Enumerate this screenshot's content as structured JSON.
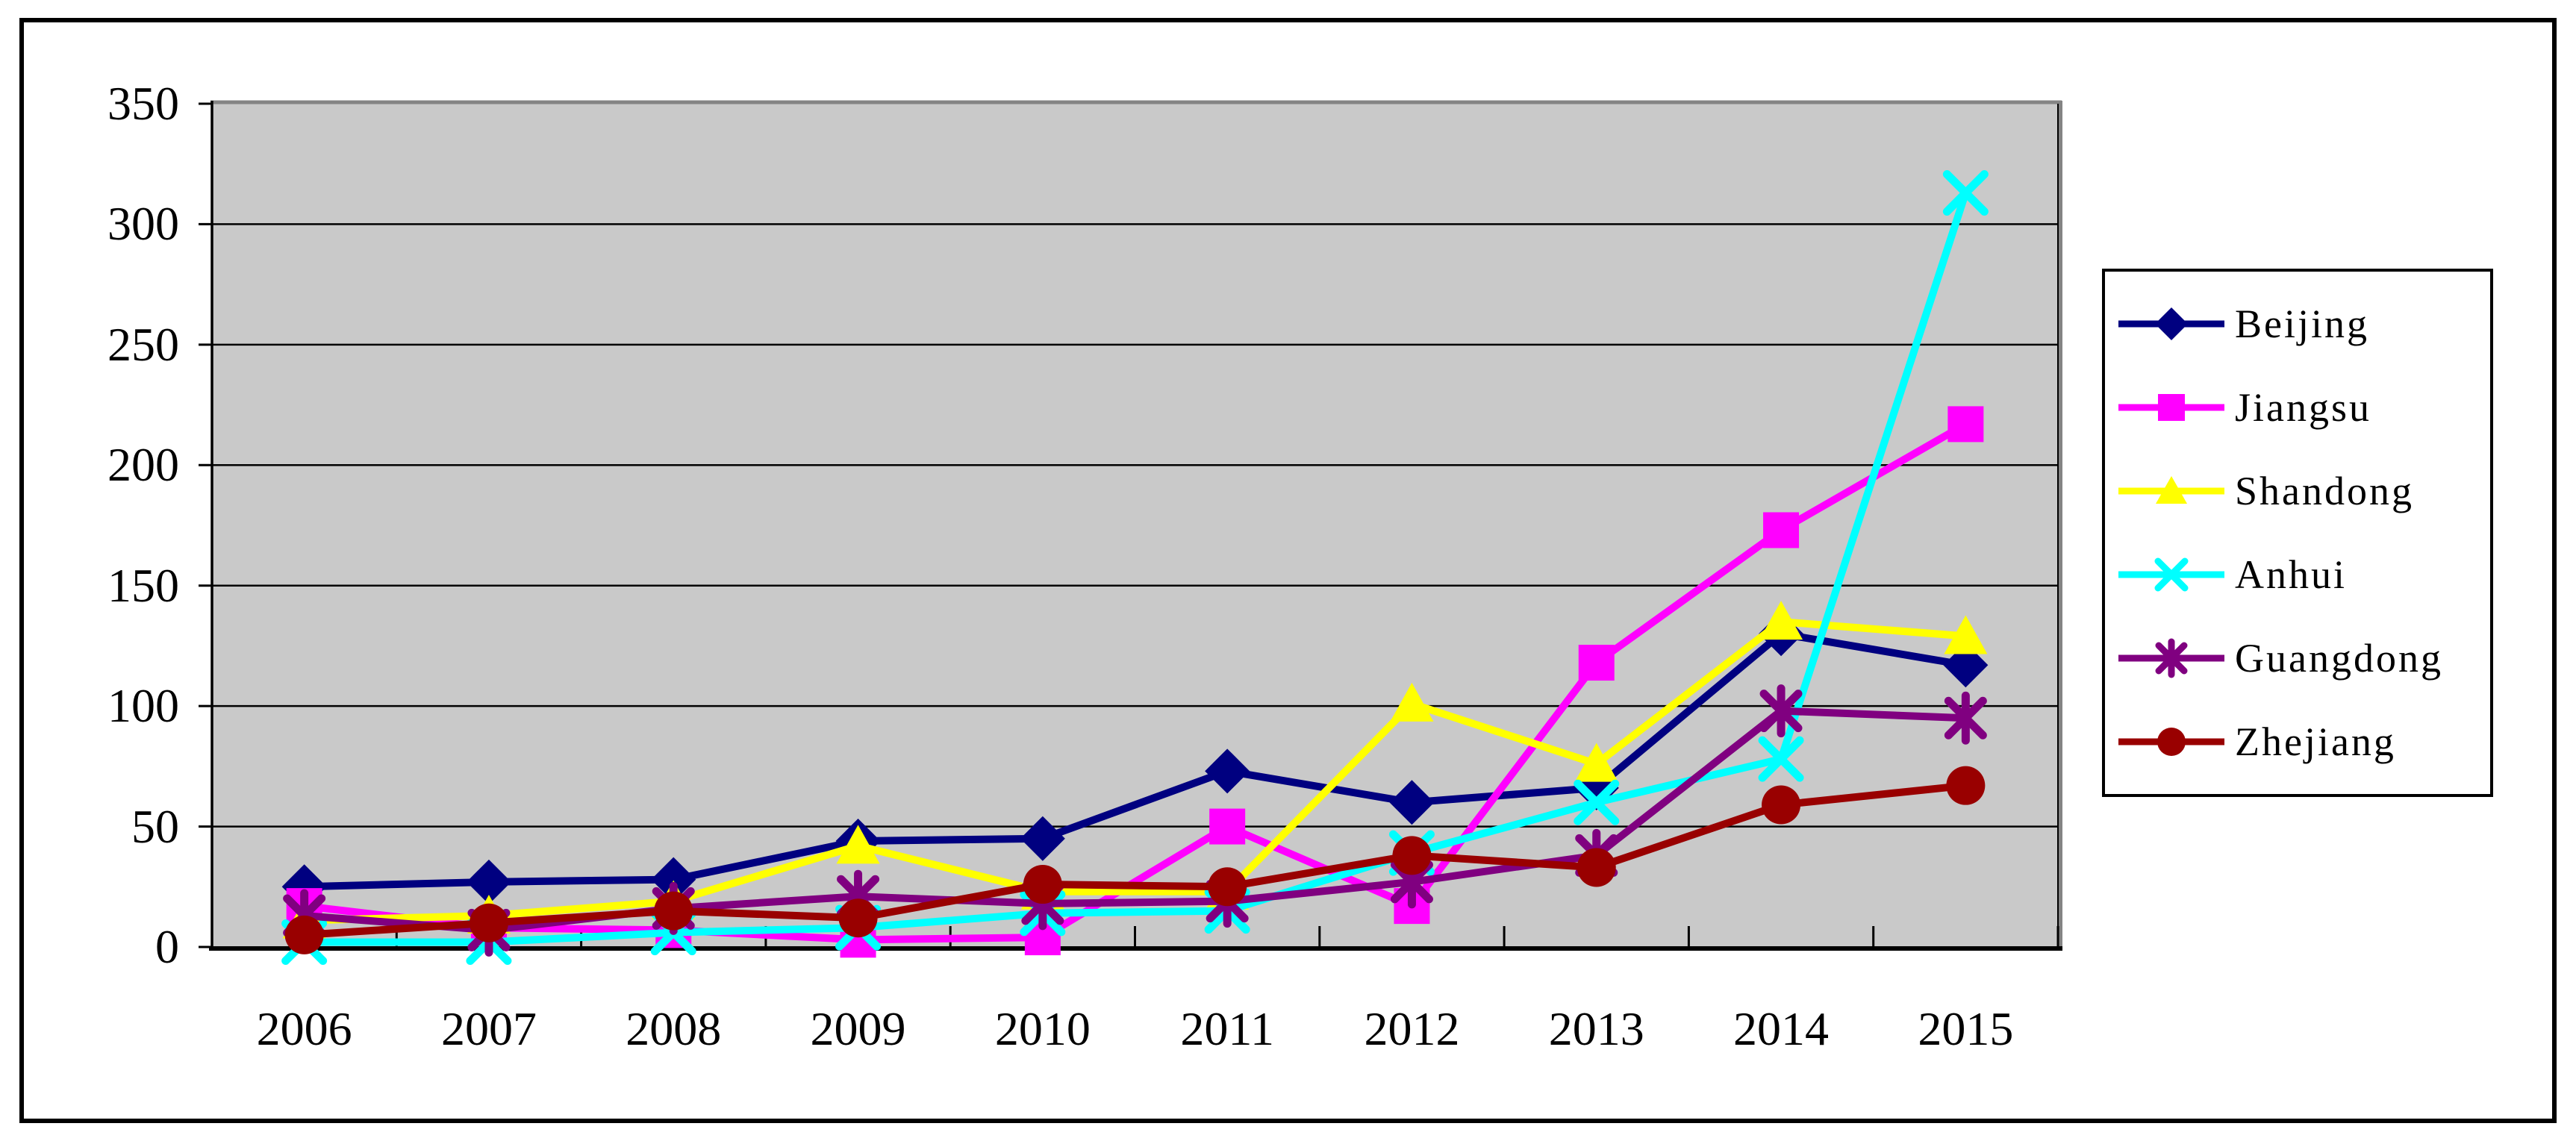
{
  "chart_data": {
    "type": "line",
    "title": "",
    "categories": [
      "2006",
      "2007",
      "2008",
      "2009",
      "2010",
      "2011",
      "2012",
      "2013",
      "2014",
      "2015"
    ],
    "series": [
      {
        "name": "Beijing",
        "color": "#000080",
        "marker": "diamond",
        "values": [
          25,
          27,
          28,
          44,
          45,
          73,
          60,
          66,
          130,
          117
        ]
      },
      {
        "name": "Jiangsu",
        "color": "#FF00FF",
        "marker": "square",
        "values": [
          17,
          8,
          7,
          3,
          4,
          50,
          17,
          118,
          173,
          217
        ]
      },
      {
        "name": "Shandong",
        "color": "#FFFF00",
        "marker": "triangle",
        "values": [
          11,
          13,
          19,
          42,
          23,
          23,
          101,
          76,
          135,
          129
        ]
      },
      {
        "name": "Anhui",
        "color": "#00FFFF",
        "marker": "x",
        "values": [
          2,
          2,
          6,
          8,
          14,
          15,
          39,
          60,
          78,
          313
        ]
      },
      {
        "name": "Guangdong",
        "color": "#800080",
        "marker": "star",
        "values": [
          13,
          7,
          16,
          21,
          18,
          19,
          27,
          38,
          98,
          95
        ]
      },
      {
        "name": "Zhejiang",
        "color": "#990000",
        "marker": "circle",
        "values": [
          5,
          10,
          15,
          12,
          26,
          25,
          38,
          33,
          59,
          67
        ]
      }
    ],
    "y_axis": {
      "min": 0,
      "max": 350,
      "step": 50,
      "tick_labels": [
        "0",
        "50",
        "100",
        "150",
        "200",
        "250",
        "300",
        "350"
      ]
    },
    "x_axis": {
      "tick_labels": [
        "2006",
        "2007",
        "2008",
        "2009",
        "2010",
        "2011",
        "2012",
        "2013",
        "2014",
        "2015"
      ]
    },
    "legend_position": "right",
    "grid": true,
    "colors": {
      "plot_background": "#C9C9C9",
      "gridline": "#000000",
      "axis": "#000000",
      "plot_shadow": "#848484",
      "text": "#000000",
      "chart_background": "#FFFFFF",
      "frame_border": "#000000"
    }
  }
}
